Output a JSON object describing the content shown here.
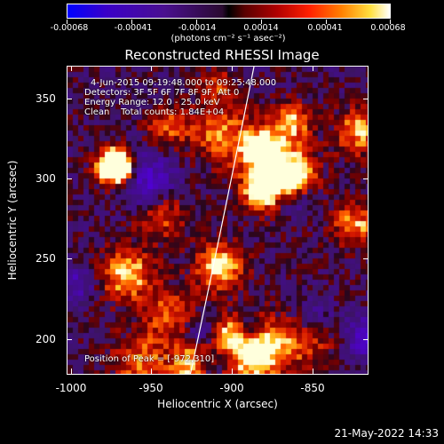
{
  "colorbar": {
    "tick_labels": [
      "-0.00068",
      "-0.00041",
      "-0.00014",
      "0.00014",
      "0.00041",
      "0.00068"
    ],
    "unit_label": "(photons cm⁻² s⁻¹ asec⁻²)"
  },
  "title": "Reconstructed RHESSI Image",
  "info": {
    "time_range": "4-Jun-2015 09:19:48.000 to 09:25:48.000",
    "detectors": "Detectors: 3F 5F 6F 7F 8F 9F, Att 0",
    "energy": "Energy Range: 12.0 - 25.0 keV",
    "clean": "Clean    Total counts: 1.84E+04",
    "peak": "Position of Peak = [-972,310]"
  },
  "axes": {
    "xlabel": "Heliocentric X (arcsec)",
    "ylabel": "Heliocentric Y (arcsec)",
    "x_ticks": [
      "-1000",
      "-950",
      "-900",
      "-850"
    ],
    "y_ticks": [
      "350",
      "300",
      "250",
      "200"
    ]
  },
  "footer": {
    "timestamp": "21-May-2022 14:33"
  }
}
